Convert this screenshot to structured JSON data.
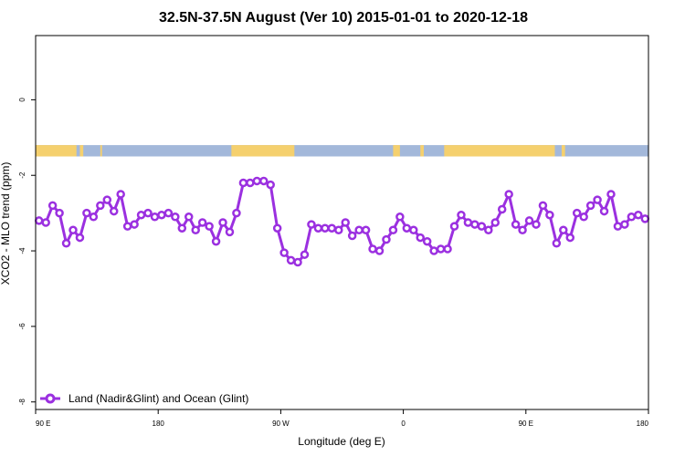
{
  "chart_data": {
    "type": "line",
    "title": "32.5N-37.5N August (Ver 10)   2015-01-01 to 2020-12-18",
    "xlabel": "Longitude (deg E)",
    "ylabel": "XCO2 - MLO trend (ppm)",
    "xlim": [
      90,
      450
    ],
    "ylim": [
      -8.2,
      1.7
    ],
    "x_ticks": [
      {
        "value": 90,
        "label": "90 E"
      },
      {
        "value": 162,
        "label": "180"
      },
      {
        "value": 234,
        "label": "90 W"
      },
      {
        "value": 306,
        "label": "0"
      },
      {
        "value": 378,
        "label": "90 E"
      },
      {
        "value": 450,
        "label": "180"
      }
    ],
    "y_ticks": [
      {
        "value": 0,
        "label": "0"
      },
      {
        "value": -2,
        "label": "-2"
      },
      {
        "value": -4,
        "label": "-4"
      },
      {
        "value": -6,
        "label": "-6"
      },
      {
        "value": -8,
        "label": "-8"
      }
    ],
    "land_ocean_strip": {
      "y_range": [
        -1.5,
        -1.2
      ],
      "land_color": "#F5D06E",
      "ocean_color": "#A3B8DA",
      "land_segments": [
        [
          90,
          114
        ],
        [
          116,
          118
        ],
        [
          128,
          129
        ],
        [
          205,
          242
        ],
        [
          300,
          304
        ],
        [
          316,
          318
        ],
        [
          330,
          395
        ],
        [
          399,
          401
        ]
      ]
    },
    "series": [
      {
        "name": "Land (Nadir&Glint) and Ocean (Glint)",
        "color": "#9B30E0",
        "x": [
          92,
          96,
          100,
          104,
          108,
          112,
          116,
          120,
          124,
          128,
          132,
          136,
          140,
          144,
          148,
          152,
          156,
          160,
          164,
          168,
          172,
          176,
          180,
          184,
          188,
          192,
          196,
          200,
          204,
          208,
          212,
          216,
          220,
          224,
          228,
          232,
          236,
          240,
          244,
          248,
          252,
          256,
          260,
          264,
          268,
          272,
          276,
          280,
          284,
          288,
          292,
          296,
          300,
          304,
          308,
          312,
          316,
          320,
          324,
          328,
          332,
          336,
          340,
          344,
          348,
          352,
          356,
          360,
          364,
          368,
          372,
          376,
          380,
          384,
          388,
          392,
          396,
          400,
          404,
          408,
          412,
          416,
          420,
          424,
          428,
          432,
          436,
          440,
          444,
          448
        ],
        "values": [
          -3.2,
          -3.25,
          -2.8,
          -3.0,
          -3.8,
          -3.45,
          -3.65,
          -3.0,
          -3.1,
          -2.8,
          -2.65,
          -2.95,
          -2.5,
          -3.35,
          -3.3,
          -3.05,
          -3.0,
          -3.1,
          -3.05,
          -3.0,
          -3.1,
          -3.4,
          -3.1,
          -3.45,
          -3.25,
          -3.35,
          -3.75,
          -3.25,
          -3.5,
          -3.0,
          -2.2,
          -2.2,
          -2.15,
          -2.15,
          -2.25,
          -3.4,
          -4.05,
          -4.25,
          -4.3,
          -4.1,
          -3.3,
          -3.4,
          -3.4,
          -3.4,
          -3.45,
          -3.25,
          -3.6,
          -3.45,
          -3.45,
          -3.95,
          -4.0,
          -3.7,
          -3.45,
          -3.1,
          -3.4,
          -3.45,
          -3.65,
          -3.75,
          -4.0,
          -3.95,
          -3.95,
          -3.35,
          -3.05,
          -3.25,
          -3.3,
          -3.35,
          -3.45,
          -3.25,
          -2.9,
          -2.5,
          -3.3,
          -3.45,
          -3.2,
          -3.3,
          -2.8,
          -3.05,
          -3.8,
          -3.45,
          -3.65,
          -3.0,
          -3.1,
          -2.8,
          -2.65,
          -2.95,
          -2.5,
          -3.35,
          -3.3,
          -3.1,
          -3.05,
          -3.15
        ]
      }
    ],
    "legend_position": "bottom-left"
  }
}
